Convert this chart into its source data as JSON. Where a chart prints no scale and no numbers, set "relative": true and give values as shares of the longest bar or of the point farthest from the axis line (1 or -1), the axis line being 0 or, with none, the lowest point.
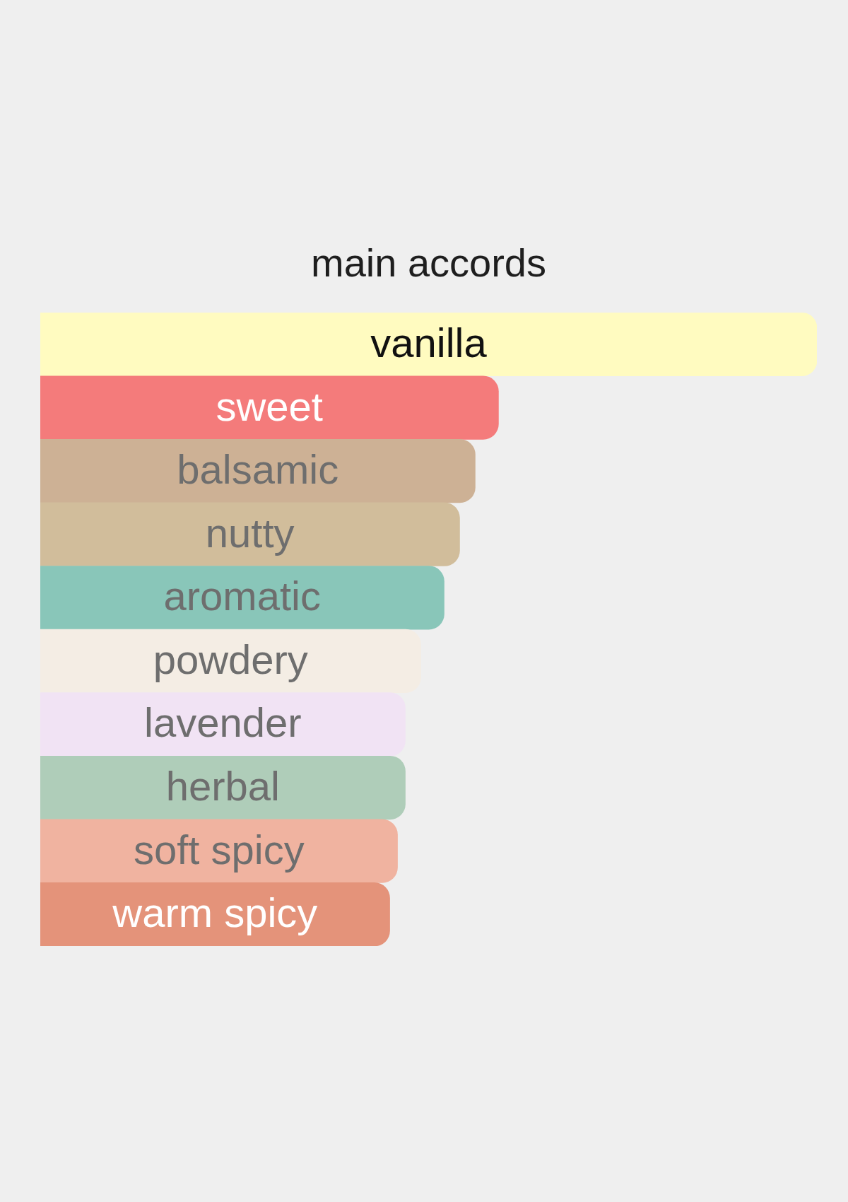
{
  "chart_data": {
    "type": "bar",
    "orientation": "horizontal",
    "relative": true,
    "title": "main accords",
    "categories": [
      "vanilla",
      "sweet",
      "balsamic",
      "nutty",
      "aromatic",
      "powdery",
      "lavender",
      "herbal",
      "soft spicy",
      "warm spicy"
    ],
    "values": [
      1,
      0.59,
      0.56,
      0.54,
      0.52,
      0.49,
      0.47,
      0.47,
      0.46,
      0.45
    ],
    "colors": [
      "#fffbc0",
      "#f47b7b",
      "#cdb195",
      "#d1bd9b",
      "#89c6b9",
      "#f4ede4",
      "#f1e3f4",
      "#afcdb9",
      "#f0b3a0",
      "#e4937a"
    ]
  }
}
